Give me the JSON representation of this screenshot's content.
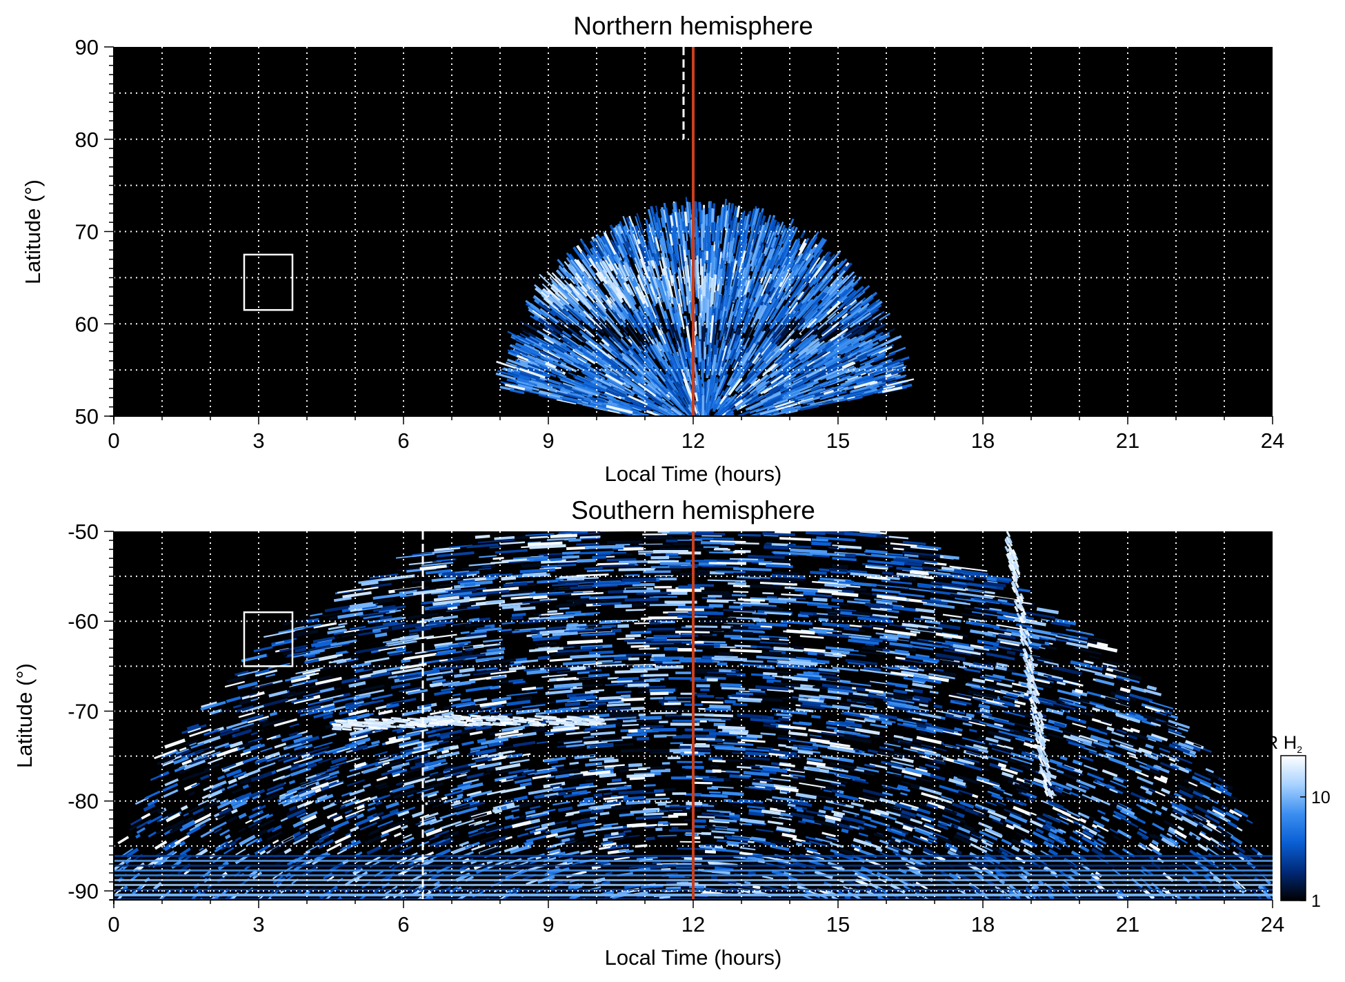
{
  "chart_data": [
    {
      "type": "heatmap",
      "title": "Northern hemisphere",
      "xlabel": "Local Time (hours)",
      "ylabel": "Latitude (°)",
      "xlim": [
        0,
        24
      ],
      "ylim": [
        50,
        90
      ],
      "xticks": [
        "0",
        "3",
        "6",
        "9",
        "12",
        "15",
        "18",
        "21",
        "24"
      ],
      "yticks": [
        "50",
        "60",
        "70",
        "80",
        "90"
      ],
      "grid": true,
      "background": "#000000",
      "emission": {
        "lt_range": [
          7.8,
          16.7
        ],
        "center_lt": 12.2,
        "max_latitude": 73.5,
        "bright_band_latitude": [
          63,
          67
        ],
        "dark_ring_latitude": 60
      },
      "reference_lines": [
        {
          "style": "solid",
          "color": "#c8401e",
          "x": 12
        },
        {
          "style": "dashed",
          "color": "#ffffff",
          "x": 11.8,
          "y_range": [
            80,
            90
          ]
        }
      ],
      "boxes": [
        {
          "x_range": [
            2.7,
            3.7
          ],
          "y_range": [
            61.5,
            67.5
          ]
        }
      ]
    },
    {
      "type": "heatmap",
      "title": "Southern hemisphere",
      "xlabel": "Local Time (hours)",
      "ylabel": "Latitude (°)",
      "xlim": [
        0,
        24
      ],
      "ylim": [
        -91,
        -50
      ],
      "xticks": [
        "0",
        "3",
        "6",
        "9",
        "12",
        "15",
        "18",
        "21",
        "24"
      ],
      "yticks": [
        "-50",
        "-60",
        "-70",
        "-80",
        "-90"
      ],
      "grid": true,
      "background": "#000000",
      "emission": {
        "lt_range": [
          0,
          24
        ],
        "bright_arc_latitude": -71,
        "bright_arc_lt": [
          4.5,
          10
        ],
        "bright_streak_lt": 18.5
      },
      "reference_lines": [
        {
          "style": "solid",
          "color": "#c8401e",
          "x": 12
        },
        {
          "style": "dashed",
          "color": "#ffffff",
          "x": 6.4,
          "y_range": [
            -91,
            -50
          ]
        }
      ],
      "boxes": [
        {
          "x_range": [
            2.7,
            3.7
          ],
          "y_range": [
            -65,
            -59
          ]
        }
      ]
    }
  ],
  "colorbar": {
    "label_main": "kR H",
    "label_sub": "2",
    "scale": "log",
    "range": [
      1,
      25
    ],
    "tick_labels": [
      "1",
      "10"
    ],
    "tick_values": [
      1,
      10
    ],
    "colors": [
      "#000000",
      "#002a78",
      "#0a5fd4",
      "#3c8ff0",
      "#a8d2ff",
      "#ffffff"
    ]
  }
}
